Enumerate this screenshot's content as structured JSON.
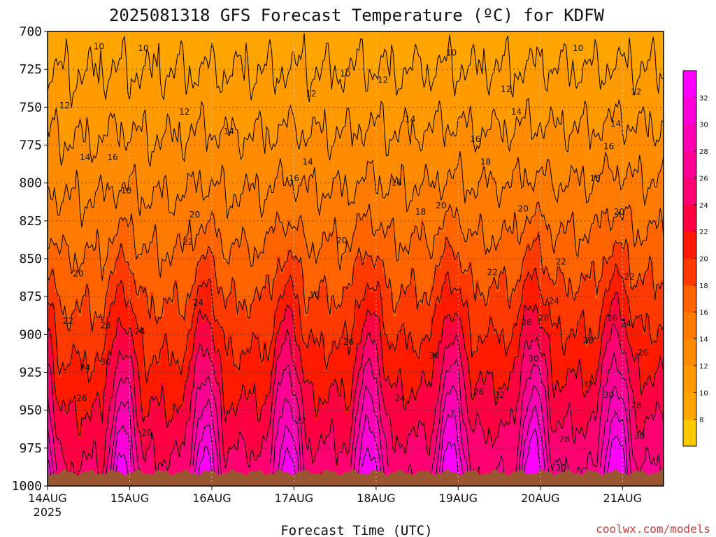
{
  "chart_data": {
    "type": "heatmap",
    "title": "2025081318 GFS Forecast Temperature (ºC) for KDFW",
    "xlabel": "Forecast Time (UTC)",
    "ylabel": "",
    "credit": "coolwx.com/models",
    "y_axis": {
      "type": "pressure (hPa)",
      "inverted": true,
      "range": [
        700,
        1000
      ],
      "ticks": [
        "700",
        "725",
        "750",
        "775",
        "800",
        "825",
        "850",
        "875",
        "900",
        "925",
        "950",
        "975",
        "1000"
      ]
    },
    "x_axis": {
      "range": [
        "2025-08-14T00",
        "2025-08-21T12"
      ],
      "ticks": [
        {
          "label": "14AUG",
          "sublabel": "2025",
          "t": "2025-08-14T00"
        },
        {
          "label": "15AUG",
          "sublabel": "",
          "t": "2025-08-15T00"
        },
        {
          "label": "16AUG",
          "sublabel": "",
          "t": "2025-08-16T00"
        },
        {
          "label": "17AUG",
          "sublabel": "",
          "t": "2025-08-17T00"
        },
        {
          "label": "18AUG",
          "sublabel": "",
          "t": "2025-08-18T00"
        },
        {
          "label": "19AUG",
          "sublabel": "",
          "t": "2025-08-19T00"
        },
        {
          "label": "20AUG",
          "sublabel": "",
          "t": "2025-08-20T00"
        },
        {
          "label": "21AUG",
          "sublabel": "",
          "t": "2025-08-21T00"
        }
      ]
    },
    "grid": true,
    "colorbar": {
      "position": "right",
      "levels": [
        6,
        8,
        10,
        12,
        14,
        16,
        18,
        20,
        22,
        24,
        26,
        28,
        30,
        32,
        34
      ],
      "labels": [
        "8",
        "10",
        "12",
        "14",
        "16",
        "18",
        "20",
        "22",
        "24",
        "26",
        "28",
        "30",
        "32"
      ],
      "colors": [
        "#FFC800",
        "#FFA500",
        "#FF9A00",
        "#FF8C00",
        "#FF7A00",
        "#FF6400",
        "#FF3A00",
        "#FF1A00",
        "#FF0040",
        "#FF0070",
        "#FF0095",
        "#FF00B5",
        "#FF00D8",
        "#FF00FF"
      ]
    },
    "contour_levels": [
      10,
      12,
      14,
      16,
      18,
      20,
      22,
      24,
      26,
      28,
      30,
      32
    ],
    "surface_color": "#9B5530",
    "contour_labels": [
      {
        "v": "10",
        "t": 15.0,
        "p": 710
      },
      {
        "v": "10",
        "t": 28.0,
        "p": 711
      },
      {
        "v": "10",
        "t": 87.0,
        "p": 728
      },
      {
        "v": "10",
        "t": 118.0,
        "p": 714
      },
      {
        "v": "10",
        "t": 155.0,
        "p": 711
      },
      {
        "v": "12",
        "t": 5.0,
        "p": 749
      },
      {
        "v": "12",
        "t": 40.0,
        "p": 753
      },
      {
        "v": "12",
        "t": 77.0,
        "p": 741
      },
      {
        "v": "12",
        "t": 98.0,
        "p": 732
      },
      {
        "v": "12",
        "t": 134.0,
        "p": 738
      },
      {
        "v": "12",
        "t": 172.0,
        "p": 740
      },
      {
        "v": "14",
        "t": 11.0,
        "p": 783
      },
      {
        "v": "14",
        "t": 53.0,
        "p": 766
      },
      {
        "v": "14",
        "t": 76.0,
        "p": 786
      },
      {
        "v": "14",
        "t": 106.0,
        "p": 758
      },
      {
        "v": "14",
        "t": 137.0,
        "p": 753
      },
      {
        "v": "14",
        "t": 166.0,
        "p": 761
      },
      {
        "v": "16",
        "t": 19.0,
        "p": 783
      },
      {
        "v": "16",
        "t": 72.0,
        "p": 797
      },
      {
        "v": "16",
        "t": 102.0,
        "p": 800
      },
      {
        "v": "16",
        "t": 125.0,
        "p": 771
      },
      {
        "v": "16",
        "t": 164.0,
        "p": 776
      },
      {
        "v": "18",
        "t": 23.0,
        "p": 805
      },
      {
        "v": "18",
        "t": 78.0,
        "p": 874
      },
      {
        "v": "18",
        "t": 109.0,
        "p": 819
      },
      {
        "v": "18",
        "t": 128.0,
        "p": 786
      },
      {
        "v": "18",
        "t": 160.0,
        "p": 797
      },
      {
        "v": "20",
        "t": 9.0,
        "p": 860
      },
      {
        "v": "20",
        "t": 43.0,
        "p": 821
      },
      {
        "v": "20",
        "t": 86.0,
        "p": 838
      },
      {
        "v": "20",
        "t": 115.0,
        "p": 815
      },
      {
        "v": "20",
        "t": 139.0,
        "p": 817
      },
      {
        "v": "20",
        "t": 167.0,
        "p": 819
      },
      {
        "v": "22",
        "t": 6.0,
        "p": 891
      },
      {
        "v": "22",
        "t": 41.0,
        "p": 839
      },
      {
        "v": "22",
        "t": 74.0,
        "p": 957
      },
      {
        "v": "22",
        "t": 130.0,
        "p": 859
      },
      {
        "v": "22",
        "t": 150.0,
        "p": 852
      },
      {
        "v": "22",
        "t": 170.0,
        "p": 862
      },
      {
        "v": "24",
        "t": 11.0,
        "p": 922
      },
      {
        "v": "24",
        "t": 27.0,
        "p": 898
      },
      {
        "v": "24",
        "t": 44.0,
        "p": 879
      },
      {
        "v": "24",
        "t": 103.0,
        "p": 942
      },
      {
        "v": "24",
        "t": 148.0,
        "p": 878
      },
      {
        "v": "24",
        "t": 169.0,
        "p": 893
      },
      {
        "v": "24",
        "t": 11.0,
        "p": 922
      },
      {
        "v": "26",
        "t": 10.0,
        "p": 942
      },
      {
        "v": "26",
        "t": 29.0,
        "p": 965
      },
      {
        "v": "26",
        "t": 88.0,
        "p": 905
      },
      {
        "v": "26",
        "t": 126.0,
        "p": 938
      },
      {
        "v": "26",
        "t": 140.0,
        "p": 892
      },
      {
        "v": "26",
        "t": 165.0,
        "p": 889
      },
      {
        "v": "26",
        "t": 174.0,
        "p": 912
      },
      {
        "v": "28",
        "t": 17.0,
        "p": 894
      },
      {
        "v": "28",
        "t": 145.0,
        "p": 889
      },
      {
        "v": "28",
        "t": 158.0,
        "p": 904
      },
      {
        "v": "28",
        "t": 151.0,
        "p": 969
      },
      {
        "v": "28",
        "t": 172.0,
        "p": 947
      },
      {
        "v": "30",
        "t": 17.0,
        "p": 918
      },
      {
        "v": "30",
        "t": 113.0,
        "p": 914
      },
      {
        "v": "30",
        "t": 142.0,
        "p": 916
      },
      {
        "v": "30",
        "t": 164.0,
        "p": 940
      },
      {
        "v": "30",
        "t": 150.0,
        "p": 988
      },
      {
        "v": "30",
        "t": 173.0,
        "p": 967
      },
      {
        "v": "32",
        "t": 132.0,
        "p": 940
      },
      {
        "v": "32",
        "t": 158.0,
        "p": 933
      }
    ],
    "dominant_structure": "Temperature decreases with height from ~32ºC near the surface to ~10ºC at 700 hPa; strong diurnal warm plumes in the lowest layer peak near 00Z each day."
  }
}
